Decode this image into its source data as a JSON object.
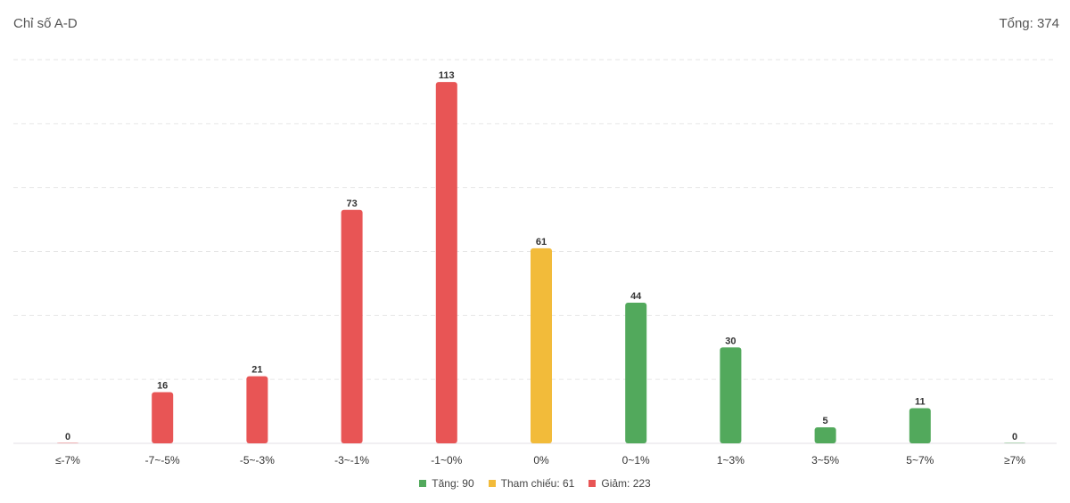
{
  "header": {
    "title": "Chỉ số A-D",
    "total": "Tổng: 374"
  },
  "colors": {
    "up": "#52a95c",
    "ref": "#f2bb3a",
    "down": "#e85555"
  },
  "chart_data": {
    "type": "bar",
    "categories": [
      "≤-7%",
      "-7~-5%",
      "-5~-3%",
      "-3~-1%",
      "-1~0%",
      "0%",
      "0~1%",
      "1~3%",
      "3~5%",
      "5~7%",
      "≥7%"
    ],
    "values": [
      0,
      16,
      21,
      73,
      113,
      61,
      44,
      30,
      5,
      11,
      0
    ],
    "bar_groups": [
      "down",
      "down",
      "down",
      "down",
      "down",
      "ref",
      "up",
      "up",
      "up",
      "up",
      "up"
    ],
    "ylim": [
      0,
      120
    ],
    "grid": true,
    "legend_position": "bottom-center"
  },
  "legend": [
    {
      "key": "up",
      "label": "Tăng: 90"
    },
    {
      "key": "ref",
      "label": "Tham chiếu: 61"
    },
    {
      "key": "down",
      "label": "Giảm: 223"
    }
  ]
}
